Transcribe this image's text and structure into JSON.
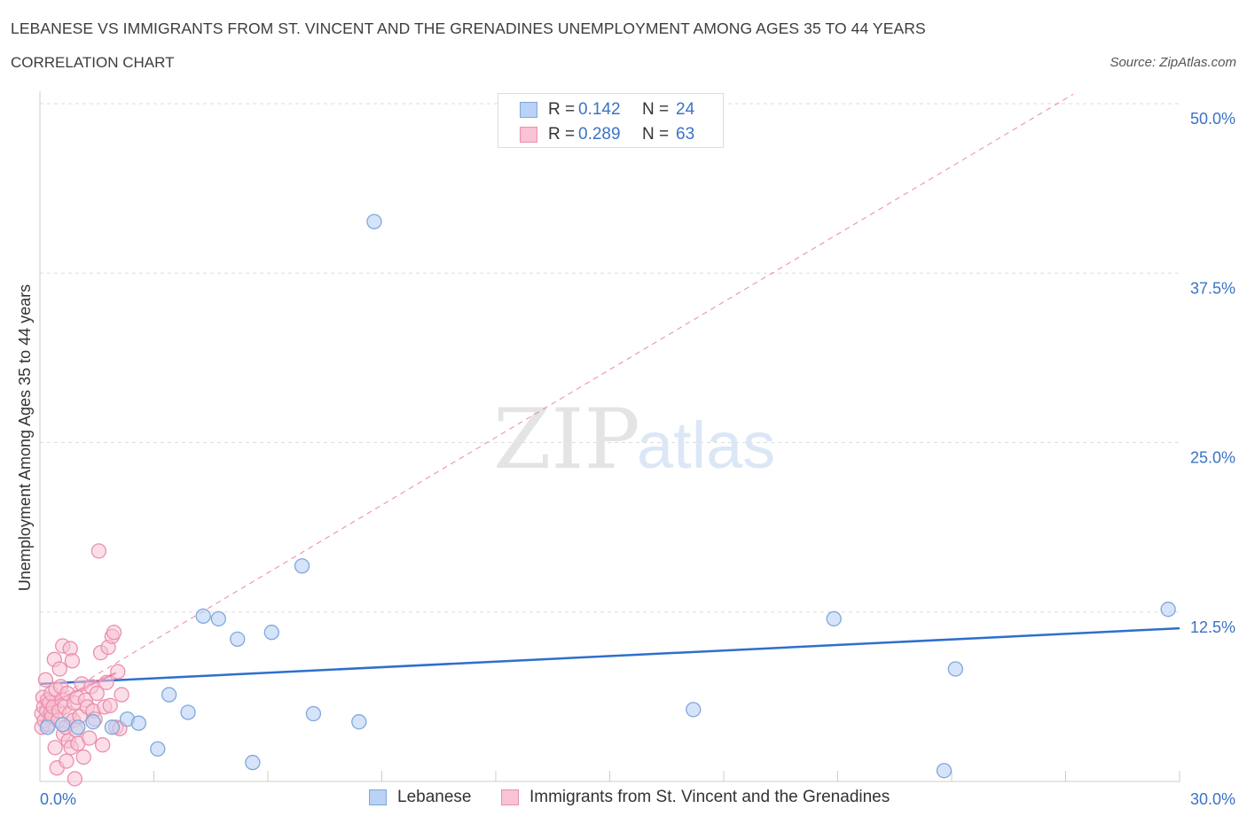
{
  "header": {
    "title": "LEBANESE VS IMMIGRANTS FROM ST. VINCENT AND THE GRENADINES UNEMPLOYMENT AMONG AGES 35 TO 44 YEARS",
    "subtitle": "CORRELATION CHART",
    "source": "Source: ZipAtlas.com"
  },
  "legend": {
    "series": [
      {
        "r_label": "R =",
        "r_value": "0.142",
        "n_label": "N =",
        "n_value": "24",
        "name": "Lebanese"
      },
      {
        "r_label": "R =",
        "r_value": "0.289",
        "n_label": "N =",
        "n_value": "63",
        "name": "Immigrants from St. Vincent and the Grenadines"
      }
    ]
  },
  "colors": {
    "blue_fill": "#b9d2f5",
    "blue_stroke": "#7fa7dc",
    "blue_line": "#2f6fcc",
    "pink_fill": "#f8c3d3",
    "pink_stroke": "#eb8fae",
    "pink_line": "#e6618a",
    "grid": "#dddddd",
    "axis_text": "#3a73c6"
  },
  "watermark": {
    "zip": "ZIP",
    "atlas": "atlas"
  },
  "chart_data": {
    "type": "scatter",
    "title": "LEBANESE VS IMMIGRANTS FROM ST. VINCENT AND THE GRENADINES UNEMPLOYMENT AMONG AGES 35 TO 44 YEARS",
    "xlabel": "",
    "ylabel": "Unemployment Among Ages 35 to 44 years",
    "xlim": [
      0,
      30
    ],
    "ylim": [
      0,
      50
    ],
    "x_tick_labels": [
      "0.0%",
      "30.0%"
    ],
    "y_ticks": [
      12.5,
      25.0,
      37.5,
      50.0
    ],
    "y_tick_labels": [
      "12.5%",
      "25.0%",
      "37.5%",
      "50.0%"
    ],
    "grid": true,
    "series": [
      {
        "name": "Lebanese",
        "points": [
          [
            0.2,
            4.0
          ],
          [
            0.6,
            4.2
          ],
          [
            1.0,
            4.0
          ],
          [
            1.4,
            4.4
          ],
          [
            1.9,
            4.0
          ],
          [
            2.3,
            4.6
          ],
          [
            2.6,
            4.3
          ],
          [
            3.1,
            2.4
          ],
          [
            3.4,
            6.4
          ],
          [
            3.9,
            5.1
          ],
          [
            4.3,
            12.2
          ],
          [
            4.7,
            12.0
          ],
          [
            5.2,
            10.5
          ],
          [
            5.6,
            1.4
          ],
          [
            6.1,
            11.0
          ],
          [
            6.9,
            15.9
          ],
          [
            7.2,
            5.0
          ],
          [
            8.4,
            4.4
          ],
          [
            8.8,
            41.3
          ],
          [
            17.2,
            5.3
          ],
          [
            20.9,
            12.0
          ],
          [
            23.8,
            0.8
          ],
          [
            24.1,
            8.3
          ],
          [
            29.7,
            12.7
          ]
        ],
        "trend": {
          "x": [
            0,
            30
          ],
          "y": [
            7.2,
            11.3
          ]
        }
      },
      {
        "name": "Immigrants from St. Vincent and the Grenadines",
        "points": [
          [
            0.05,
            4.0
          ],
          [
            0.05,
            5.0
          ],
          [
            0.08,
            6.2
          ],
          [
            0.1,
            5.5
          ],
          [
            0.12,
            4.5
          ],
          [
            0.15,
            7.5
          ],
          [
            0.18,
            5.2
          ],
          [
            0.2,
            6.0
          ],
          [
            0.22,
            4.2
          ],
          [
            0.25,
            5.8
          ],
          [
            0.28,
            5.0
          ],
          [
            0.3,
            6.5
          ],
          [
            0.32,
            4.8
          ],
          [
            0.35,
            5.5
          ],
          [
            0.38,
            9.0
          ],
          [
            0.4,
            2.5
          ],
          [
            0.42,
            6.8
          ],
          [
            0.45,
            1.0
          ],
          [
            0.48,
            4.5
          ],
          [
            0.5,
            5.2
          ],
          [
            0.52,
            8.3
          ],
          [
            0.55,
            7.0
          ],
          [
            0.58,
            6.0
          ],
          [
            0.6,
            10.0
          ],
          [
            0.62,
            3.5
          ],
          [
            0.65,
            5.5
          ],
          [
            0.68,
            4.0
          ],
          [
            0.7,
            1.5
          ],
          [
            0.72,
            6.5
          ],
          [
            0.75,
            3.0
          ],
          [
            0.78,
            5.0
          ],
          [
            0.8,
            9.8
          ],
          [
            0.82,
            2.5
          ],
          [
            0.85,
            8.9
          ],
          [
            0.88,
            4.5
          ],
          [
            0.9,
            5.8
          ],
          [
            0.92,
            0.2
          ],
          [
            0.95,
            3.8
          ],
          [
            0.98,
            6.2
          ],
          [
            1.0,
            2.8
          ],
          [
            1.05,
            4.8
          ],
          [
            1.1,
            7.2
          ],
          [
            1.15,
            1.8
          ],
          [
            1.2,
            6.0
          ],
          [
            1.25,
            5.5
          ],
          [
            1.3,
            3.2
          ],
          [
            1.35,
            7.0
          ],
          [
            1.4,
            5.2
          ],
          [
            1.45,
            4.6
          ],
          [
            1.5,
            6.5
          ],
          [
            1.55,
            17.0
          ],
          [
            1.6,
            9.5
          ],
          [
            1.65,
            2.7
          ],
          [
            1.7,
            5.5
          ],
          [
            1.75,
            7.3
          ],
          [
            1.8,
            9.9
          ],
          [
            1.85,
            5.6
          ],
          [
            1.9,
            10.7
          ],
          [
            1.95,
            11.0
          ],
          [
            2.0,
            4.0
          ],
          [
            2.05,
            8.1
          ],
          [
            2.1,
            3.9
          ],
          [
            2.15,
            6.4
          ]
        ],
        "trend": {
          "x": [
            0,
            2
          ],
          "y": [
            5.4,
            8.0
          ]
        },
        "trend_extended": {
          "x": [
            0,
            27.2
          ],
          "y": [
            5.4,
            50.7
          ]
        }
      }
    ]
  }
}
